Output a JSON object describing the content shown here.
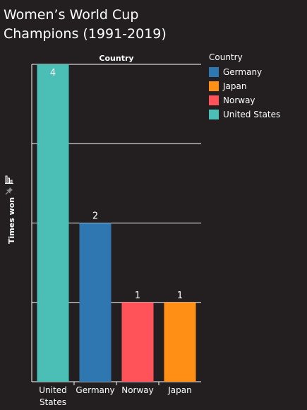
{
  "title": "Women’s World Cup Champions (1991-2019)",
  "chart_data": {
    "type": "bar",
    "column_header": "Country",
    "ylabel": "Times won",
    "ylim": [
      0,
      4
    ],
    "categories": [
      "United States",
      "Germany",
      "Norway",
      "Japan"
    ],
    "category_labels": [
      [
        "United",
        "States"
      ],
      [
        "Germany"
      ],
      [
        "Norway"
      ],
      [
        "Japan"
      ]
    ],
    "values": [
      4,
      2,
      1,
      1
    ],
    "colors": [
      "#4bbfb5",
      "#2f77b0",
      "#ff5359",
      "#ff9015"
    ],
    "gridlines": true,
    "legend": {
      "title": "Country",
      "position": "top-right",
      "items": [
        {
          "label": "Germany",
          "color": "#2f77b0"
        },
        {
          "label": "Japan",
          "color": "#ff9015"
        },
        {
          "label": "Norway",
          "color": "#ff5359"
        },
        {
          "label": "United States",
          "color": "#4bbfb5"
        }
      ]
    }
  },
  "icons": {
    "sort": "bar-chart-sort-icon",
    "pin": "pin-icon"
  }
}
